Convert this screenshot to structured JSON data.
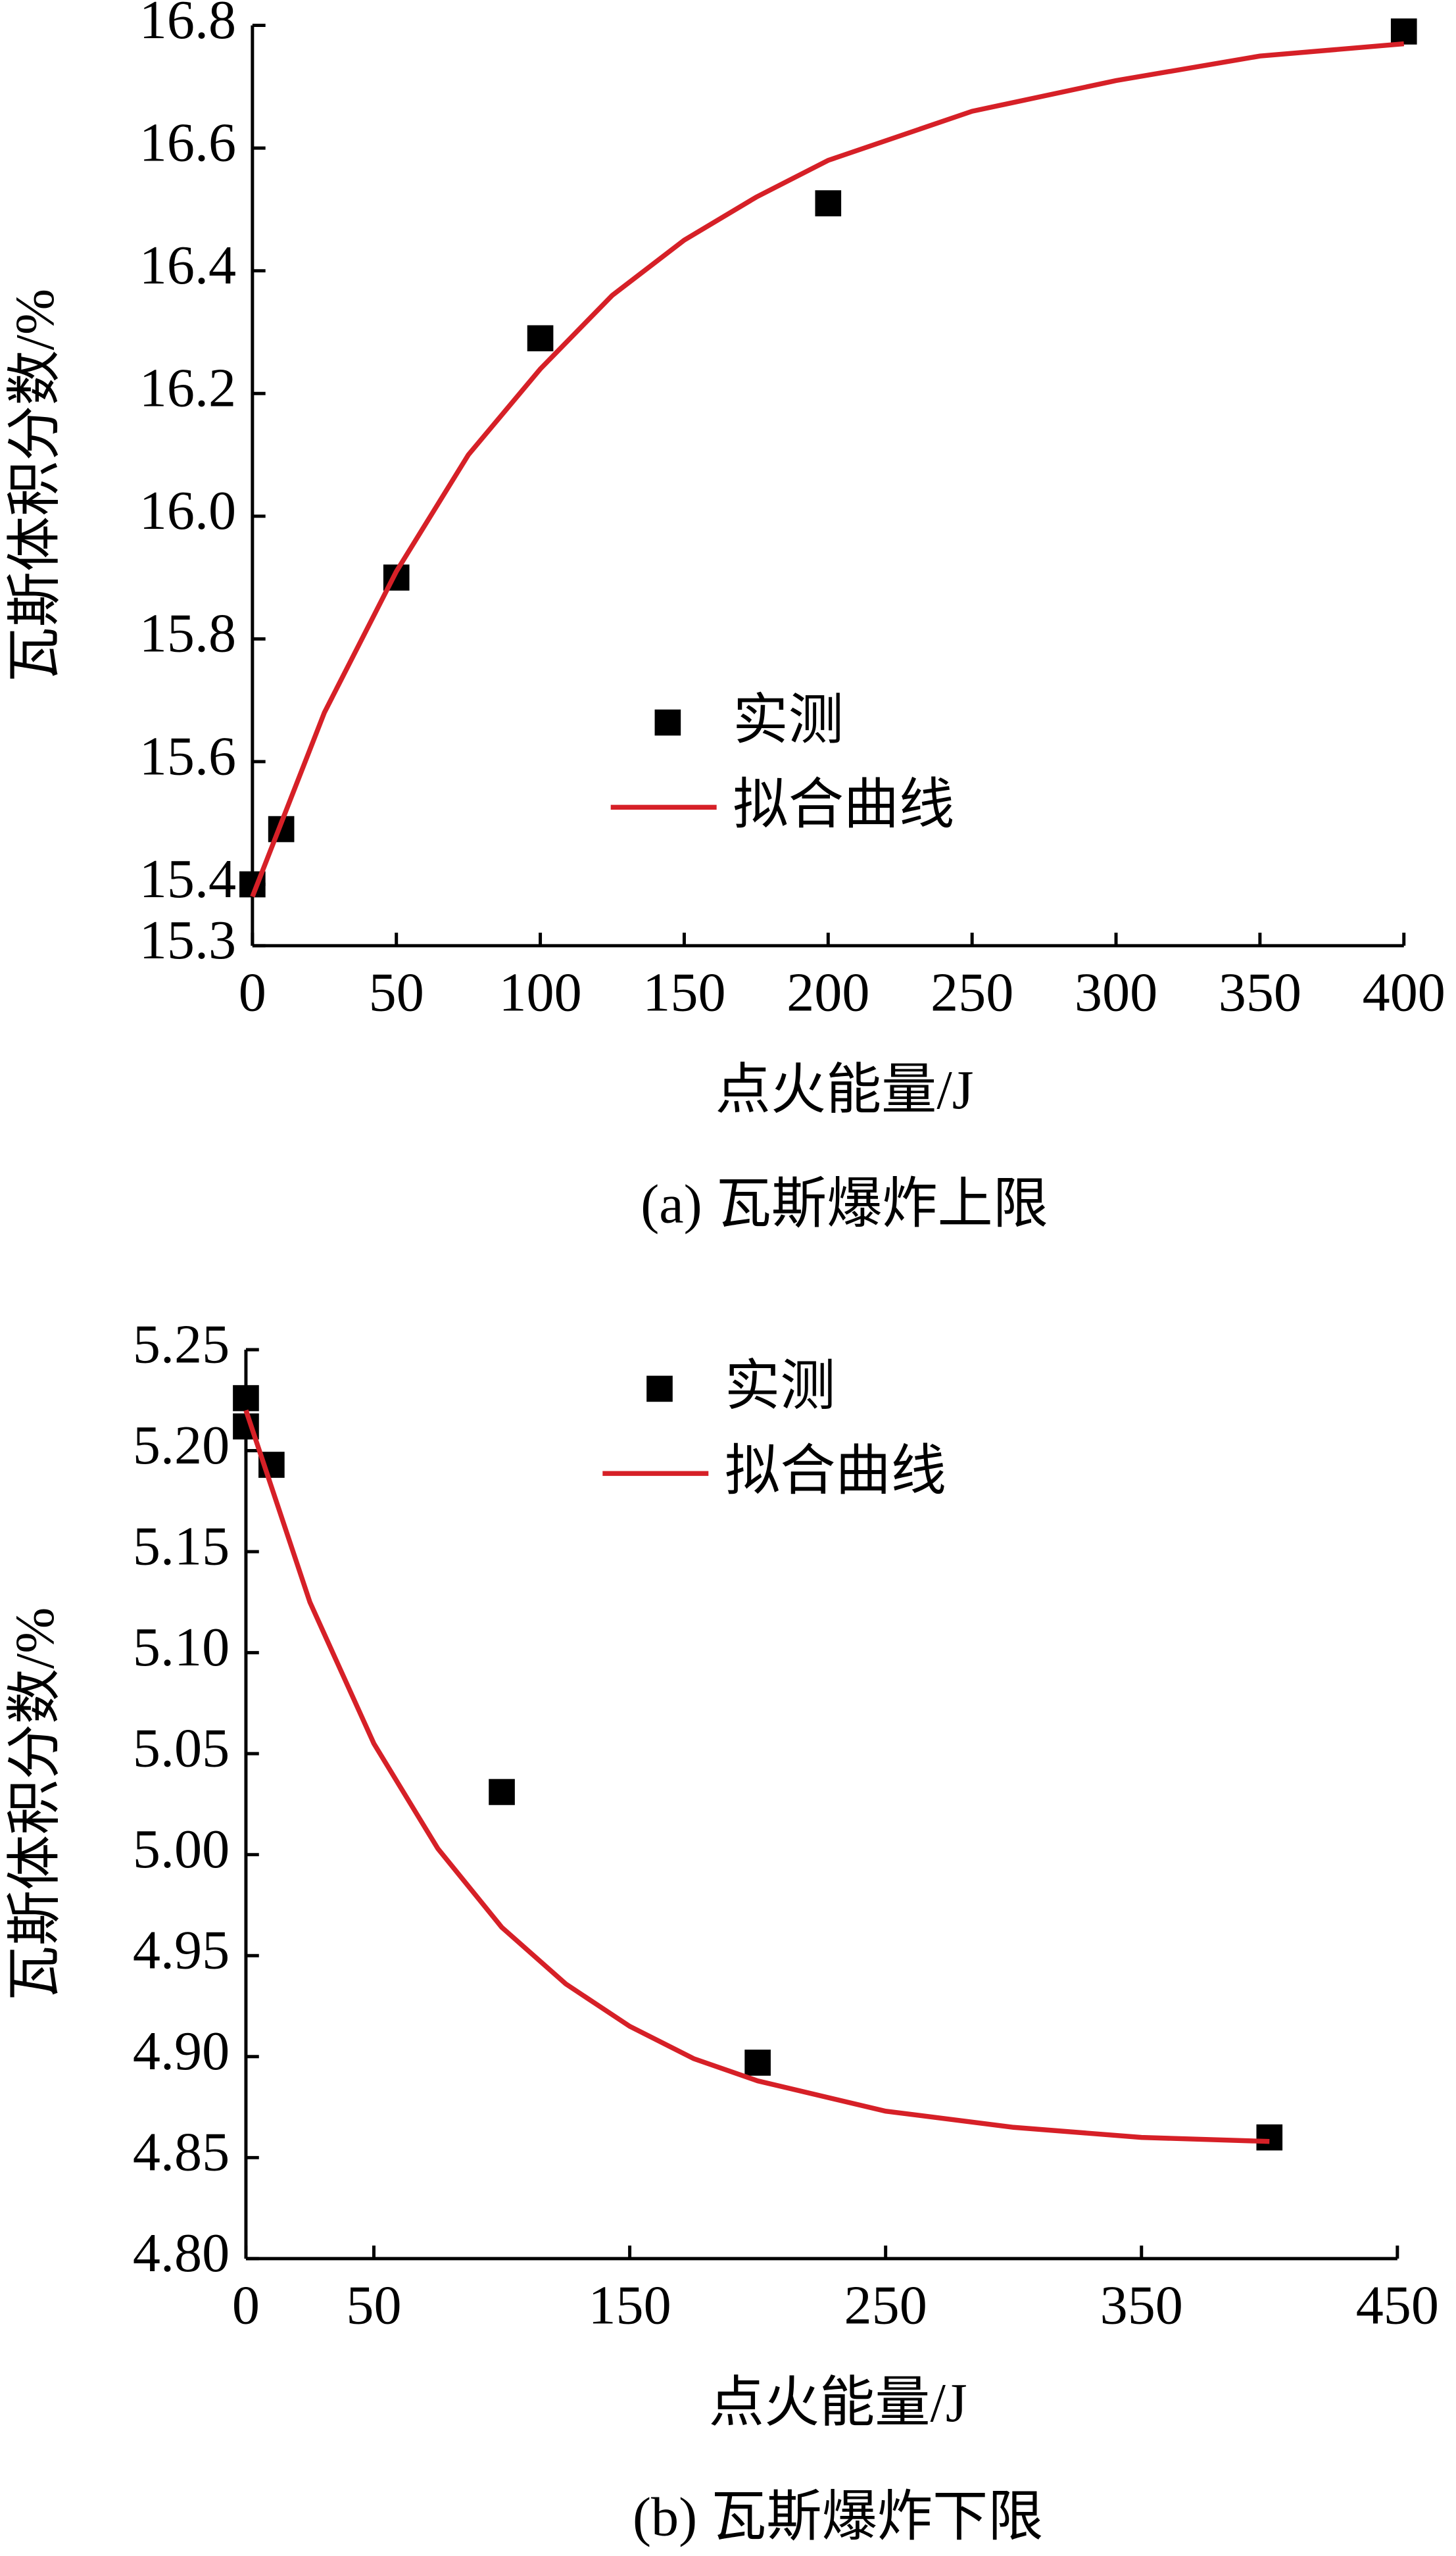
{
  "chart_data": [
    {
      "type": "scatter",
      "caption": "(a) 瓦斯爆炸上限",
      "xlabel": "点火能量/J",
      "ylabel": "瓦斯体积分数/%",
      "xlim": [
        0,
        400
      ],
      "xticks": [
        0,
        50,
        100,
        150,
        200,
        250,
        300,
        350,
        400
      ],
      "ylim": [
        15.3,
        16.8
      ],
      "yticks": [
        15.3,
        15.4,
        15.6,
        15.8,
        {
          "value": 16,
          "label": "16.0"
        },
        16.2,
        16.4,
        16.6,
        16.8
      ],
      "legend": "center",
      "series": [
        {
          "name": "实测",
          "type": "scatter",
          "color": "#000000",
          "x": [
            0,
            10,
            50,
            100,
            200,
            400
          ],
          "values": [
            15.4,
            15.49,
            15.9,
            16.29,
            16.51,
            16.79
          ]
        },
        {
          "name": "拟合曲线",
          "type": "line",
          "color": "#d62027",
          "x": [
            0,
            25,
            50,
            75,
            100,
            125,
            150,
            175,
            200,
            250,
            300,
            350,
            400
          ],
          "values": [
            15.38,
            15.68,
            15.91,
            16.1,
            16.24,
            16.36,
            16.45,
            16.52,
            16.58,
            16.66,
            16.71,
            16.75,
            16.77
          ]
        }
      ]
    },
    {
      "type": "scatter",
      "caption": "(b) 瓦斯爆炸下限",
      "xlabel": "点火能量/J",
      "ylabel": "瓦斯体积分数/%",
      "xlim": [
        0,
        450
      ],
      "xticks": [
        0,
        50,
        150,
        250,
        350,
        450
      ],
      "ylim": [
        4.8,
        5.25
      ],
      "yticks": [
        {
          "value": 4.8,
          "label": "4.80"
        },
        4.85,
        {
          "value": 4.9,
          "label": "4.90"
        },
        4.95,
        {
          "value": 5,
          "label": "5.00"
        },
        5.05,
        {
          "value": 5.1,
          "label": "5.10"
        },
        5.15,
        {
          "value": 5.2,
          "label": "5.20"
        },
        5.25
      ],
      "legend": "upper center",
      "series": [
        {
          "name": "实测",
          "type": "scatter",
          "color": "#000000",
          "x": [
            0,
            0,
            10,
            100,
            200,
            400
          ],
          "values": [
            5.226,
            5.212,
            5.193,
            5.031,
            4.897,
            4.86
          ]
        },
        {
          "name": "拟合曲线",
          "type": "line",
          "color": "#d62027",
          "x": [
            0,
            25,
            50,
            75,
            100,
            125,
            150,
            175,
            200,
            250,
            300,
            350,
            400
          ],
          "values": [
            5.22,
            5.125,
            5.055,
            5.003,
            4.964,
            4.936,
            4.915,
            4.899,
            4.888,
            4.873,
            4.865,
            4.86,
            4.858
          ]
        }
      ]
    }
  ]
}
